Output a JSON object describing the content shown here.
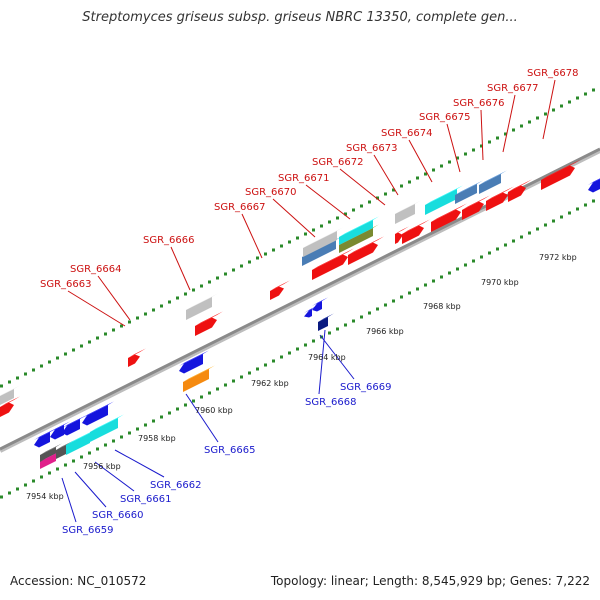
{
  "title": "Streptomyces griseus subsp. griseus NBRC 13350, complete gen...",
  "footer": {
    "accession": "Accession: NC_010572",
    "summary": "Topology: linear; Length: 8,545,929 bp; Genes: 7,222"
  },
  "colors": {
    "forward": "#ee1111",
    "reverse": "#1515dd",
    "backbone": "#8a8a8a",
    "tick": "#2a8a2a",
    "gray_box": "#c0c0c0",
    "cyan": "#18dddd",
    "steelblue": "#4a7db5",
    "olive": "#7a8a30",
    "orange": "#f58a10",
    "navy": "#0a1a80",
    "magenta": "#e0208a",
    "darkgray": "#555555"
  },
  "scale_labels": [
    "7954 kbp",
    "7956 kbp",
    "7958 kbp",
    "7960 kbp",
    "7962 kbp",
    "7964 kbp",
    "7966 kbp",
    "7968 kbp",
    "7970 kbp",
    "7972 kbp"
  ],
  "upper_genes": [
    "SGR_6663",
    "SGR_6664",
    "SGR_6666",
    "SGR_6667",
    "SGR_6670",
    "SGR_6671",
    "SGR_6672",
    "SGR_6673",
    "SGR_6674",
    "SGR_6675",
    "SGR_6676",
    "SGR_6677",
    "SGR_6678"
  ],
  "lower_genes": [
    "SGR_6659",
    "SGR_6660",
    "SGR_6661",
    "SGR_6662",
    "SGR_6665",
    "SGR_6668",
    "SGR_6669"
  ]
}
